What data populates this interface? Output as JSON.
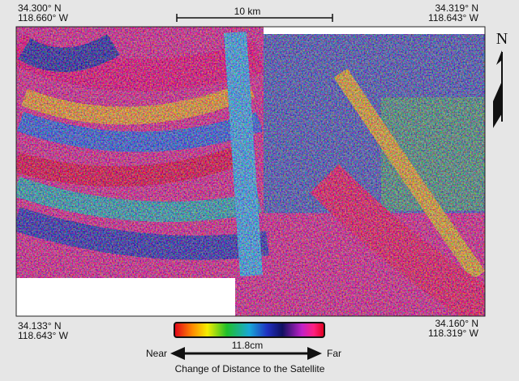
{
  "scale_bar": {
    "label": "10 km"
  },
  "north_arrow": {
    "label": "N"
  },
  "corners": {
    "top_left": [
      "34.300° N",
      "118.660° W"
    ],
    "top_right": [
      "34.319° N",
      "118.643° W"
    ],
    "bottom_left": [
      "34.133° N",
      "118.643° W"
    ],
    "bottom_right": [
      "34.160° N",
      "118.319° W"
    ]
  },
  "legend": {
    "label": "11.8cm",
    "near": "Near",
    "far": "Far",
    "caption": "Change of Distance to the Satellite"
  }
}
